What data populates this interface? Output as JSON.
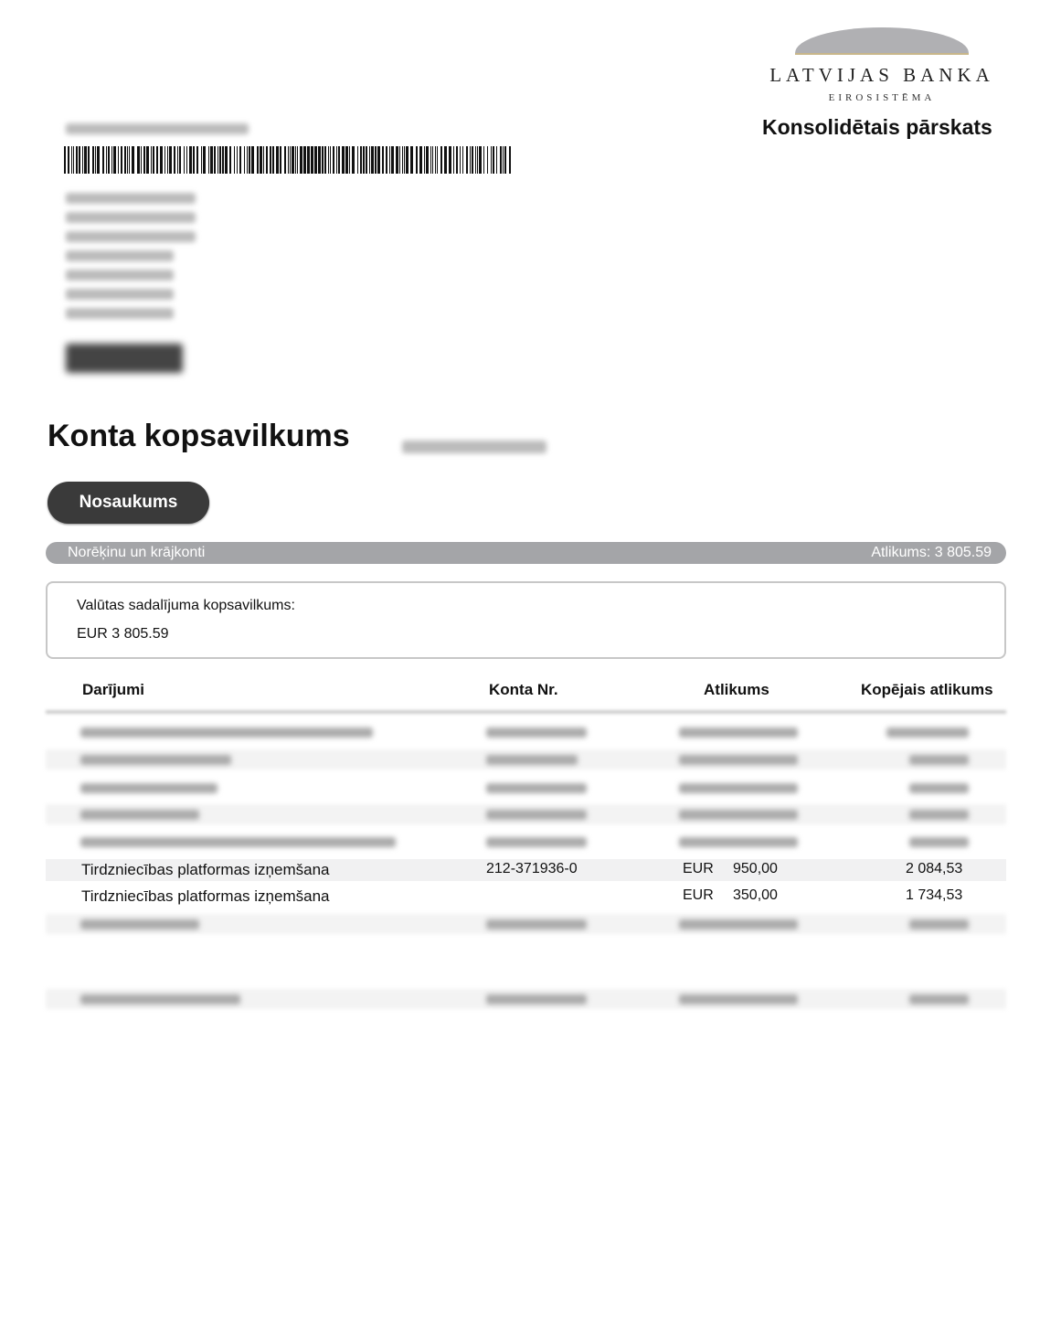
{
  "logo": {
    "name": "LATVIJAS BANKA",
    "sub": "EIROSISTĒMA"
  },
  "report_title": "Konsolidētais pārskats",
  "page_title": "Konta kopsavilkums",
  "tab_label": "Nosaukums",
  "section": {
    "label": "Norēķinu un krājkonti",
    "balance": "Atlikums: 3 805.59"
  },
  "currency_summary": {
    "label": "Valūtas sadalījuma kopsavilkums:",
    "value": "EUR 3 805.59"
  },
  "table": {
    "headers": [
      "Darījumi",
      "Konta Nr.",
      "Atlikums",
      "Kopējais atlikums"
    ],
    "rows": [
      {
        "description": "Tirdzniecības platformas izņemšana",
        "account": "212-371936-0",
        "currency": "EUR",
        "amount": "950,00",
        "total": "2 084,53"
      },
      {
        "description": "Tirdzniecības platformas izņemšana",
        "account": "",
        "currency": "EUR",
        "amount": "350,00",
        "total": "1 734,53"
      }
    ]
  }
}
